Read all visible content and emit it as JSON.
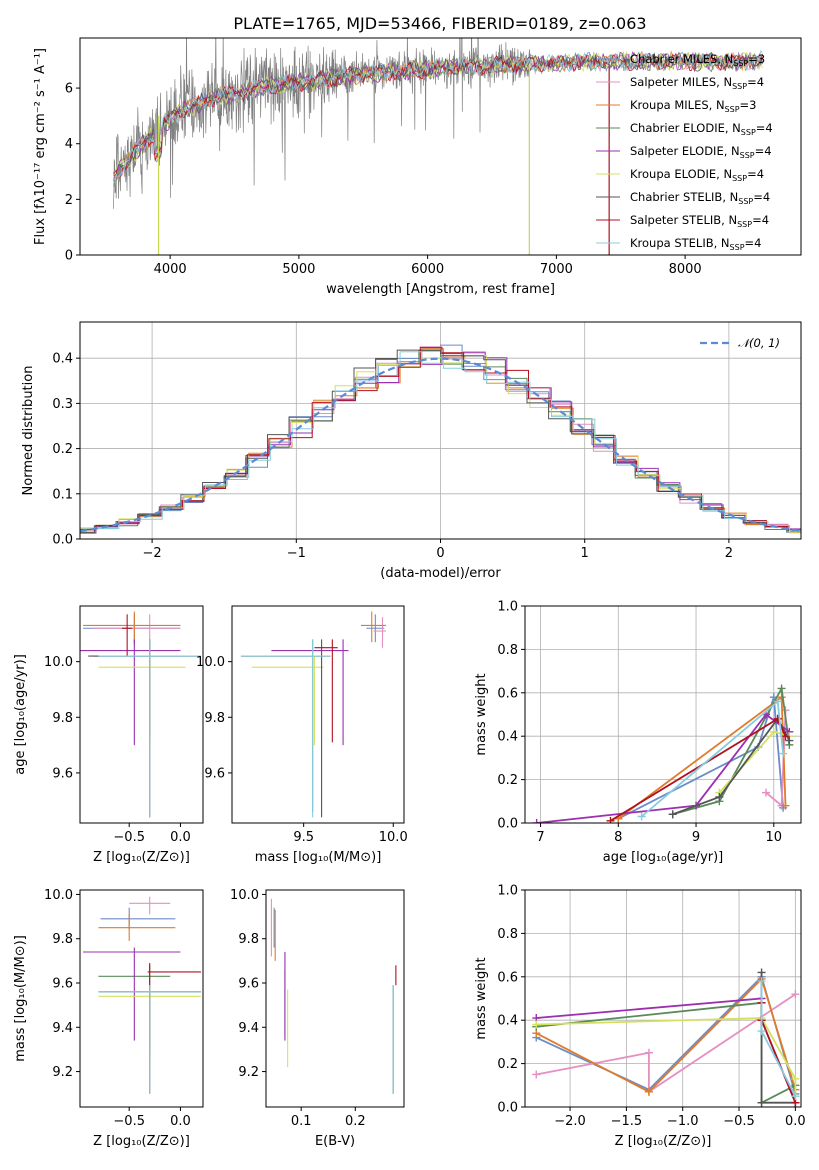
{
  "colors": [
    "#6b8cc7",
    "#e68fc0",
    "#e07b2a",
    "#5a8a5a",
    "#9b30b0",
    "#d4e060",
    "#555555",
    "#b01020",
    "#87cce0"
  ],
  "chart_data": [
    {
      "id": "spectrum",
      "type": "line",
      "title": "PLATE=1765, MJD=53466, FIBERID=0189, z=0.063",
      "xlabel": "wavelength [Angstrom, rest frame]",
      "ylabel": "Flux [fλ10⁻¹⁷ erg cm⁻² s⁻¹ A⁻¹]",
      "xlim": [
        3300,
        8900
      ],
      "ylim": [
        0,
        7.8
      ],
      "xticks": [
        4000,
        5000,
        6000,
        7000,
        8000
      ],
      "yticks": [
        0,
        2,
        4,
        6
      ],
      "legend_position": "top-right",
      "data_color": "#808080",
      "continuum": {
        "x": [
          3560,
          3650,
          3750,
          3900,
          4000,
          4100,
          4200,
          4300,
          4400,
          4600,
          4800,
          5000,
          5200,
          5400,
          5600,
          5800,
          6000,
          6200,
          6400,
          6600,
          6800,
          7000,
          7200,
          7400,
          7600,
          7800,
          8000,
          8200,
          8400,
          8600
        ],
        "y": [
          2.8,
          3.3,
          3.8,
          4.5,
          4.9,
          5.2,
          5.4,
          5.6,
          5.7,
          5.9,
          6.1,
          6.2,
          6.3,
          6.45,
          6.55,
          6.6,
          6.7,
          6.75,
          6.8,
          6.85,
          6.85,
          6.9,
          6.95,
          6.95,
          6.95,
          6.95,
          6.95,
          6.95,
          6.95,
          7.0
        ]
      },
      "legend": [
        "Chabrier MILES, N_SSP=3",
        "Salpeter MILES, N_SSP=4",
        "Kroupa MILES, N_SSP=3",
        "Chabrier ELODIE, N_SSP=4",
        "Salpeter ELODIE, N_SSP=4",
        "Kroupa ELODIE, N_SSP=4",
        "Chabrier STELIB, N_SSP=4",
        "Salpeter STELIB, N_SSP=4",
        "Kroupa STELIB, N_SSP=4"
      ]
    },
    {
      "id": "residuals",
      "type": "line",
      "xlabel": "(data-model)/error",
      "ylabel": "Normed distribution",
      "xlim": [
        -2.5,
        2.5
      ],
      "ylim": [
        0,
        0.48
      ],
      "xticks": [
        -2,
        -1,
        0,
        1,
        2
      ],
      "yticks": [
        0.0,
        0.1,
        0.2,
        0.3,
        0.4
      ],
      "grid": true,
      "legend_position": "top-right",
      "reference": {
        "name": "𝒩(0, 1)",
        "color": "#5b8ad6"
      }
    },
    {
      "id": "age_vs_Z",
      "type": "scatter",
      "xlabel": "Z [log₁₀(Z/Z⊙)]",
      "ylabel": "age  [log₁₀(age/yr)]",
      "xlim": [
        -0.98,
        0.22
      ],
      "ylim": [
        9.42,
        10.2
      ],
      "xticks": [
        -0.5,
        0.0
      ],
      "yticks": [
        9.6,
        9.8,
        10.0
      ],
      "points": [
        {
          "x": -0.45,
          "y": 10.12,
          "xerr": [
            0.5,
            0.45
          ],
          "yerr": [
            0.06,
            0.05
          ],
          "c": 0
        },
        {
          "x": -0.3,
          "y": 10.12,
          "xerr": [
            0.55,
            0.3
          ],
          "yerr": [
            0.05,
            0.05
          ],
          "c": 1
        },
        {
          "x": -0.45,
          "y": 10.13,
          "xerr": [
            0.5,
            0.45
          ],
          "yerr": [
            0.06,
            0.05
          ],
          "c": 2
        },
        {
          "x": -0.3,
          "y": 10.02,
          "xerr": [
            0.55,
            0.5
          ],
          "yerr": [
            0.3,
            0.06
          ],
          "c": 3
        },
        {
          "x": -0.45,
          "y": 10.04,
          "xerr": [
            0.55,
            0.45
          ],
          "yerr": [
            0.34,
            0.04
          ],
          "c": 4
        },
        {
          "x": -0.3,
          "y": 9.98,
          "xerr": [
            0.5,
            0.35
          ],
          "yerr": [
            0.28,
            0.04
          ],
          "c": 5
        },
        {
          "x": -0.3,
          "y": 10.02,
          "xerr": [
            0.6,
            0.5
          ],
          "yerr": [
            0.58,
            0.06
          ],
          "c": 6
        },
        {
          "x": -0.52,
          "y": 10.12,
          "xerr": [
            0.05,
            0.05
          ],
          "yerr": [
            0.1,
            0.05
          ],
          "c": 7
        },
        {
          "x": -0.3,
          "y": 10.02,
          "xerr": [
            0.5,
            0.5
          ],
          "yerr": [
            0.58,
            0.06
          ],
          "c": 8
        }
      ]
    },
    {
      "id": "age_vs_mass",
      "type": "scatter",
      "xlabel": "mass [log₁₀(M/M⊙)]",
      "ylabel": "",
      "xlim": [
        9.1,
        10.06
      ],
      "ylim": [
        9.42,
        10.2
      ],
      "xticks": [
        9.5,
        10.0
      ],
      "yticks": [
        9.6,
        9.8,
        10.0
      ],
      "points": [
        {
          "x": 9.9,
          "y": 10.12,
          "xerr": [
            0.05,
            0.05
          ],
          "yerr": [
            0.05,
            0.05
          ],
          "c": 0
        },
        {
          "x": 9.94,
          "y": 10.11,
          "xerr": [
            0.05,
            0.02
          ],
          "yerr": [
            0.06,
            0.05
          ],
          "c": 1
        },
        {
          "x": 9.88,
          "y": 10.13,
          "xerr": [
            0.06,
            0.08
          ],
          "yerr": [
            0.06,
            0.05
          ],
          "c": 2
        },
        {
          "x": 9.55,
          "y": 10.02,
          "xerr": [
            0.4,
            0.1
          ],
          "yerr": [
            0.56,
            0.06
          ],
          "c": 3
        },
        {
          "x": 9.72,
          "y": 10.04,
          "xerr": [
            0.4,
            0.03
          ],
          "yerr": [
            0.34,
            0.04
          ],
          "c": 4
        },
        {
          "x": 9.56,
          "y": 9.98,
          "xerr": [
            0.35,
            0.05
          ],
          "yerr": [
            0.28,
            0.04
          ],
          "c": 5
        },
        {
          "x": 9.6,
          "y": 10.02,
          "xerr": [
            0.45,
            0.05
          ],
          "yerr": [
            0.58,
            0.06
          ],
          "c": 6
        },
        {
          "x": 9.66,
          "y": 10.05,
          "xerr": [
            0.1,
            0.03
          ],
          "yerr": [
            0.34,
            0.03
          ],
          "c": 7
        },
        {
          "x": 9.55,
          "y": 10.02,
          "xerr": [
            0.4,
            0.1
          ],
          "yerr": [
            0.58,
            0.06
          ],
          "c": 8
        }
      ]
    },
    {
      "id": "weight_vs_age",
      "type": "line",
      "xlabel": "age  [log₁₀(age/yr)]",
      "ylabel": "mass weight",
      "xlim": [
        6.8,
        10.35
      ],
      "ylim": [
        0,
        1.0
      ],
      "xticks": [
        7,
        8,
        9,
        10
      ],
      "yticks": [
        0.0,
        0.2,
        0.4,
        0.6,
        0.8,
        1.0
      ],
      "grid": true,
      "series": [
        {
          "c": 0,
          "x": [
            8.0,
            9.8,
            10.0,
            10.12
          ],
          "y": [
            0.02,
            0.35,
            0.58,
            0.07
          ]
        },
        {
          "c": 1,
          "x": [
            9.9,
            10.1,
            10.15
          ],
          "y": [
            0.14,
            0.08,
            0.52
          ]
        },
        {
          "c": 2,
          "x": [
            8.0,
            10.1,
            10.15
          ],
          "y": [
            0.02,
            0.58,
            0.08
          ]
        },
        {
          "c": 3,
          "x": [
            8.7,
            9.3,
            10.1,
            10.2
          ],
          "y": [
            0.04,
            0.1,
            0.62,
            0.36
          ]
        },
        {
          "c": 4,
          "x": [
            6.95,
            9.0,
            9.9,
            10.2
          ],
          "y": [
            0.0,
            0.08,
            0.5,
            0.42
          ]
        },
        {
          "c": 5,
          "x": [
            9.3,
            10.0,
            10.2
          ],
          "y": [
            0.14,
            0.42,
            0.4
          ]
        },
        {
          "c": 6,
          "x": [
            8.7,
            9.3,
            10.05,
            10.2
          ],
          "y": [
            0.04,
            0.12,
            0.48,
            0.38
          ]
        },
        {
          "c": 7,
          "x": [
            7.9,
            10.05,
            10.15
          ],
          "y": [
            0.01,
            0.48,
            0.4
          ]
        },
        {
          "c": 8,
          "x": [
            8.3,
            10.05,
            10.12
          ],
          "y": [
            0.03,
            0.56,
            0.32
          ]
        }
      ]
    },
    {
      "id": "mass_vs_Z",
      "type": "scatter",
      "xlabel": "Z [log₁₀(Z/Z⊙)]",
      "ylabel": "mass [log₁₀(M/M⊙)]",
      "xlim": [
        -0.98,
        0.22
      ],
      "ylim": [
        9.04,
        10.02
      ],
      "xticks": [
        -0.5,
        0.0
      ],
      "yticks": [
        9.2,
        9.4,
        9.6,
        9.8,
        10.0
      ],
      "points": [
        {
          "x": -0.5,
          "y": 9.89,
          "xerr": [
            0.28,
            0.45
          ],
          "yerr": [
            0.05,
            0.05
          ],
          "c": 0
        },
        {
          "x": -0.3,
          "y": 9.96,
          "xerr": [
            0.2,
            0.2
          ],
          "yerr": [
            0.05,
            0.03
          ],
          "c": 1
        },
        {
          "x": -0.5,
          "y": 9.85,
          "xerr": [
            0.3,
            0.45
          ],
          "yerr": [
            0.06,
            0.06
          ],
          "c": 2
        },
        {
          "x": -0.3,
          "y": 9.63,
          "xerr": [
            0.5,
            0.2
          ],
          "yerr": [
            0.35,
            0.05
          ],
          "c": 3
        },
        {
          "x": -0.45,
          "y": 9.74,
          "xerr": [
            0.5,
            0.45
          ],
          "yerr": [
            0.4,
            0.02
          ],
          "c": 4
        },
        {
          "x": -0.3,
          "y": 9.54,
          "xerr": [
            0.5,
            0.5
          ],
          "yerr": [
            0.32,
            0.02
          ],
          "c": 5
        },
        {
          "x": -0.3,
          "y": 9.56,
          "xerr": [
            0.5,
            0.5
          ],
          "yerr": [
            0.46,
            0.03
          ],
          "c": 6
        },
        {
          "x": -0.3,
          "y": 9.65,
          "xerr": [
            0.02,
            0.5
          ],
          "yerr": [
            0.06,
            0.04
          ],
          "c": 7
        },
        {
          "x": -0.3,
          "y": 9.56,
          "xerr": [
            0.5,
            0.5
          ],
          "yerr": [
            0.46,
            0.03
          ],
          "c": 8
        }
      ]
    },
    {
      "id": "mass_vs_ebv",
      "type": "scatter",
      "xlabel": "E(B-V)",
      "ylabel": "",
      "xlim": [
        0.035,
        0.29
      ],
      "ylim": [
        9.04,
        10.02
      ],
      "xticks": [
        0.1,
        0.2
      ],
      "yticks": [
        9.2,
        9.4,
        9.6,
        9.8,
        10.0
      ],
      "points": [
        {
          "x": 0.05,
          "y": 9.88,
          "yerr": [
            0.12,
            0.06
          ],
          "c": 0
        },
        {
          "x": 0.045,
          "y": 9.94,
          "yerr": [
            0.22,
            0.04
          ],
          "c": 1
        },
        {
          "x": 0.052,
          "y": 9.87,
          "yerr": [
            0.17,
            0.06
          ],
          "c": 2
        },
        {
          "x": 0.07,
          "y": 9.62,
          "yerr": [
            0.26,
            0.04
          ],
          "c": 3
        },
        {
          "x": 0.07,
          "y": 9.72,
          "yerr": [
            0.38,
            0.02
          ],
          "c": 4
        },
        {
          "x": 0.075,
          "y": 9.54,
          "yerr": [
            0.32,
            0.03
          ],
          "c": 5
        },
        {
          "x": 0.27,
          "y": 9.56,
          "yerr": [
            0.46,
            0.03
          ],
          "c": 6
        },
        {
          "x": 0.275,
          "y": 9.62,
          "yerr": [
            0.03,
            0.06
          ],
          "c": 7
        },
        {
          "x": 0.27,
          "y": 9.56,
          "yerr": [
            0.46,
            0.03
          ],
          "c": 8
        }
      ]
    },
    {
      "id": "weight_vs_Z",
      "type": "line",
      "xlabel": "Z [log₁₀(Z/Z⊙)]",
      "ylabel": "mass weight",
      "xlim": [
        -2.4,
        0.05
      ],
      "ylim": [
        0,
        1.0
      ],
      "xticks": [
        -2.0,
        -1.5,
        -1.0,
        -0.5,
        0.0
      ],
      "yticks": [
        0.0,
        0.2,
        0.4,
        0.6,
        0.8,
        1.0
      ],
      "grid": true,
      "series": [
        {
          "c": 0,
          "x": [
            -2.3,
            -1.3,
            -0.3,
            0.0
          ],
          "y": [
            0.32,
            0.08,
            0.6,
            0.06
          ]
        },
        {
          "c": 1,
          "x": [
            -2.3,
            -1.3,
            -1.3,
            0.0
          ],
          "y": [
            0.15,
            0.25,
            0.07,
            0.52
          ]
        },
        {
          "c": 2,
          "x": [
            -2.3,
            -1.3,
            -0.3,
            0.0
          ],
          "y": [
            0.34,
            0.07,
            0.59,
            0.08
          ]
        },
        {
          "c": 3,
          "x": [
            -2.3,
            -0.3,
            -0.3,
            0.0
          ],
          "y": [
            0.37,
            0.48,
            0.02,
            0.1
          ]
        },
        {
          "c": 4,
          "x": [
            -2.3,
            -0.3,
            -0.3,
            0.0
          ],
          "y": [
            0.41,
            0.5,
            0.4,
            0.02
          ]
        },
        {
          "c": 5,
          "x": [
            -2.3,
            -0.3,
            0.0,
            0.0
          ],
          "y": [
            0.38,
            0.41,
            0.13,
            0.05
          ]
        },
        {
          "c": 6,
          "x": [
            -0.3,
            -0.3,
            0.0
          ],
          "y": [
            0.62,
            0.02,
            0.02
          ]
        },
        {
          "c": 7,
          "x": [
            -0.3,
            -0.3,
            0.0
          ],
          "y": [
            0.48,
            0.4,
            0.02
          ]
        },
        {
          "c": 8,
          "x": [
            -0.3,
            -0.3,
            0.0
          ],
          "y": [
            0.58,
            0.35,
            0.05
          ]
        }
      ]
    }
  ]
}
